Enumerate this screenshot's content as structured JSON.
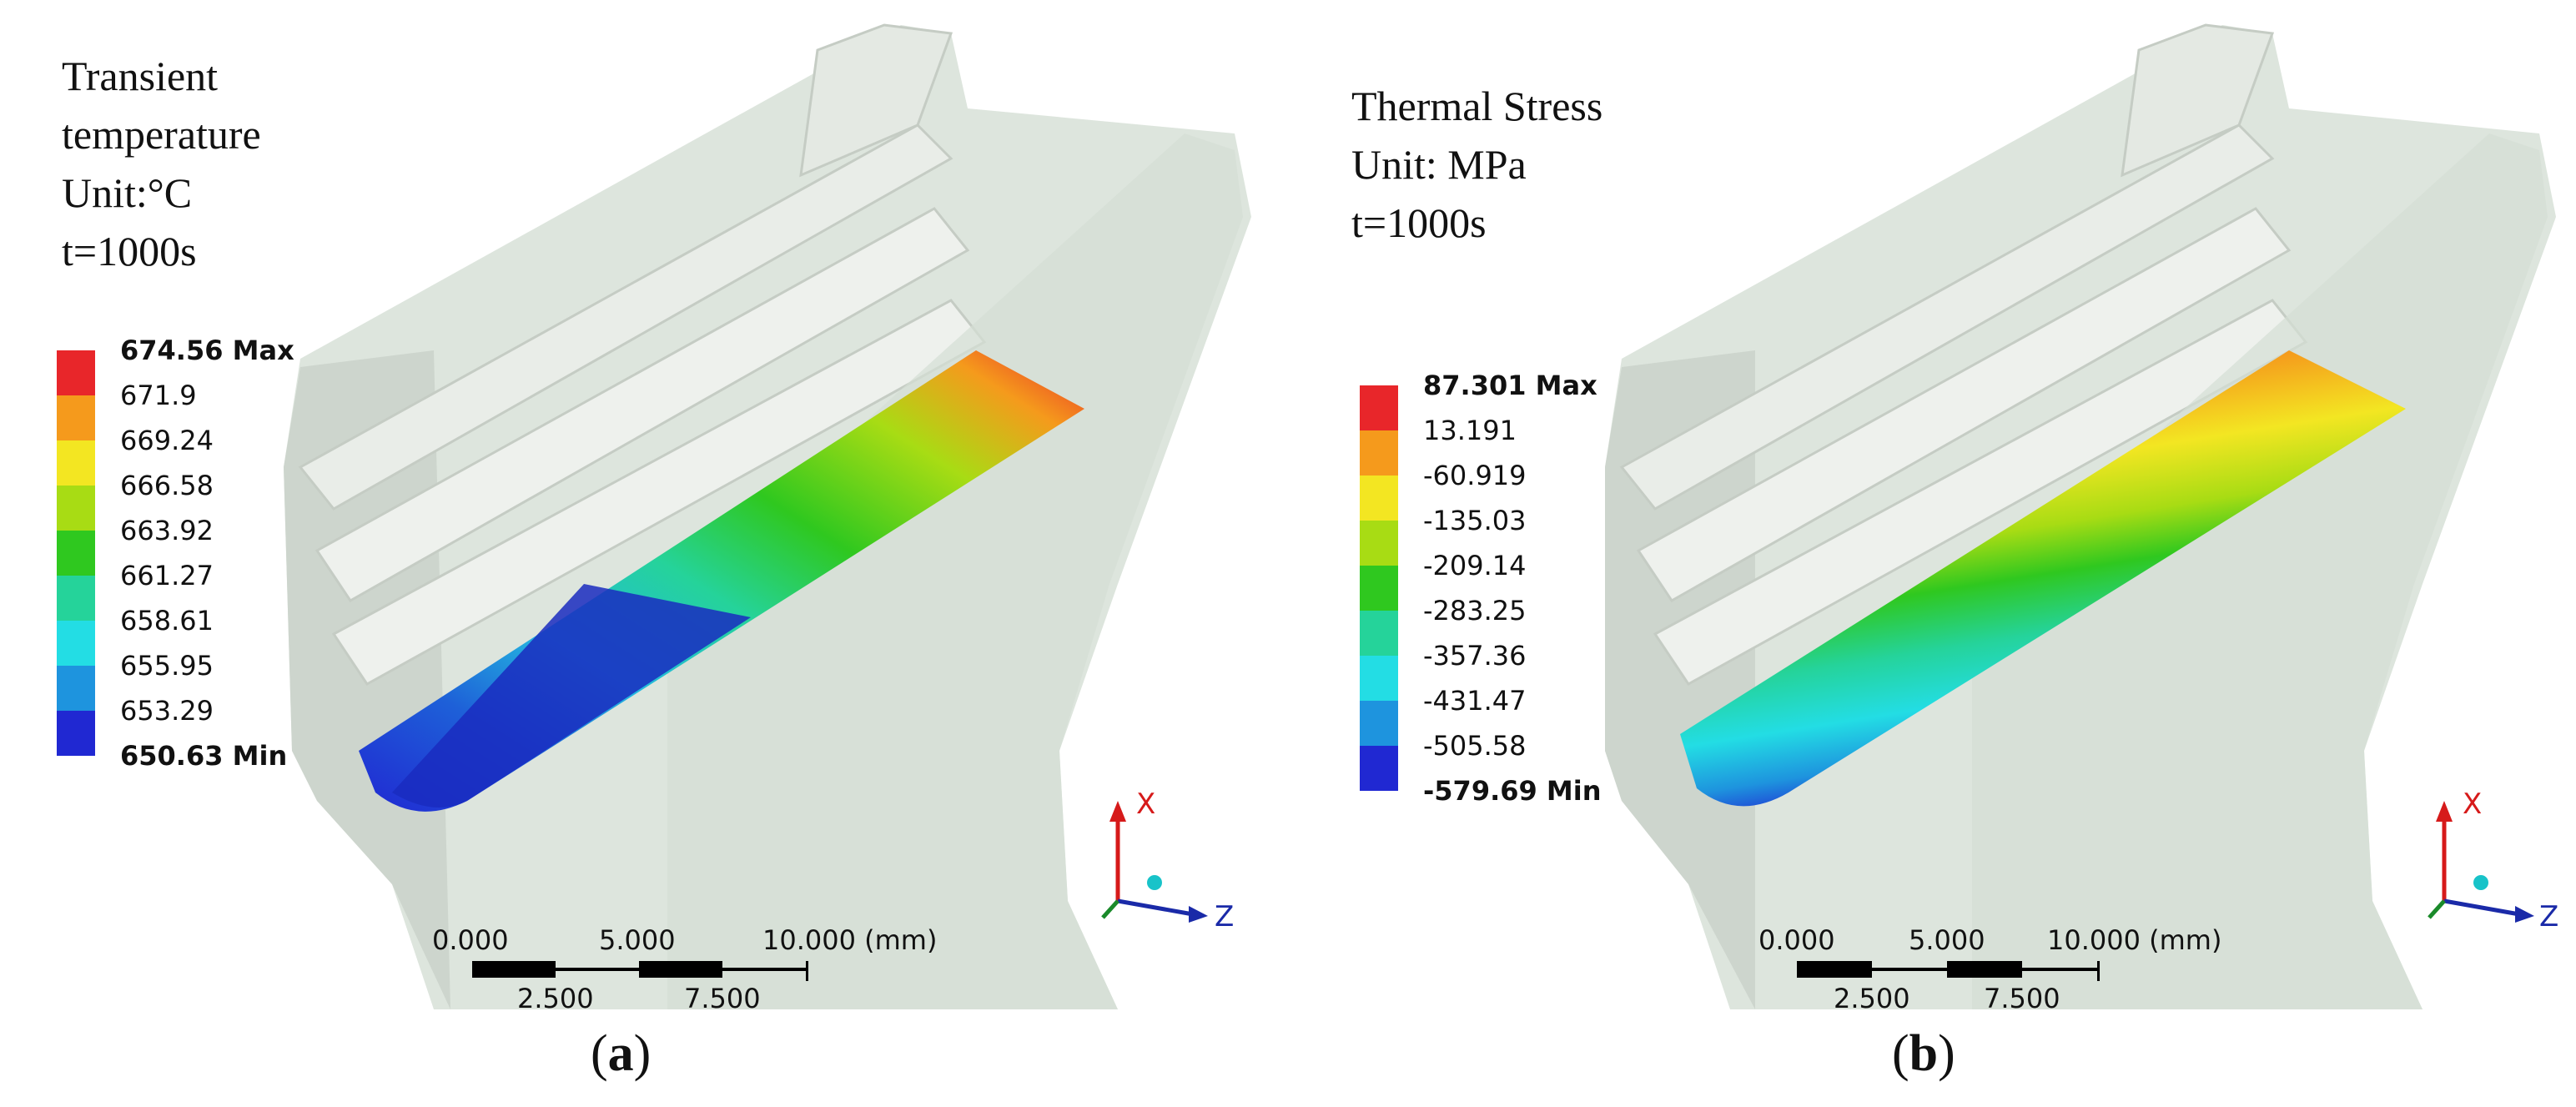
{
  "panels": [
    {
      "id": "a",
      "title_lines": [
        "Transient",
        "temperature",
        "Unit:°C",
        "t=1000s"
      ],
      "legend": {
        "labels": [
          "674.56 Max",
          "671.9",
          "669.24",
          "666.58",
          "663.92",
          "661.27",
          "658.61",
          "655.95",
          "653.29",
          "650.63 Min"
        ],
        "colors": [
          "#e8262a",
          "#f59a1c",
          "#f3e622",
          "#a8dc14",
          "#2fc81f",
          "#25d39a",
          "#23dde4",
          "#1e94de",
          "#2028d2"
        ]
      },
      "scale": {
        "ticks_top": [
          "0.000",
          "5.000",
          "10.000 (mm)"
        ],
        "ticks_bottom": [
          "2.500",
          "7.500"
        ]
      },
      "axes": {
        "x": "X",
        "z": "Z"
      },
      "caption": {
        "open": "(",
        "letter": "a",
        "close": ")"
      }
    },
    {
      "id": "b",
      "title_lines": [
        "Thermal Stress",
        "Unit: MPa",
        "t=1000s"
      ],
      "legend": {
        "labels": [
          "87.301 Max",
          "13.191",
          "-60.919",
          "-135.03",
          "-209.14",
          "-283.25",
          "-357.36",
          "-431.47",
          "-505.58",
          "-579.69 Min"
        ],
        "colors": [
          "#e8262a",
          "#f59a1c",
          "#f3e622",
          "#a8dc14",
          "#2fc81f",
          "#25d39a",
          "#23dde4",
          "#1e94de",
          "#2028d2"
        ]
      },
      "scale": {
        "ticks_top": [
          "0.000",
          "5.000",
          "10.000 (mm)"
        ],
        "ticks_bottom": [
          "2.500",
          "7.500"
        ]
      },
      "axes": {
        "x": "X",
        "z": "Z"
      },
      "caption": {
        "open": "(",
        "letter": "b",
        "close": ")"
      }
    }
  ]
}
